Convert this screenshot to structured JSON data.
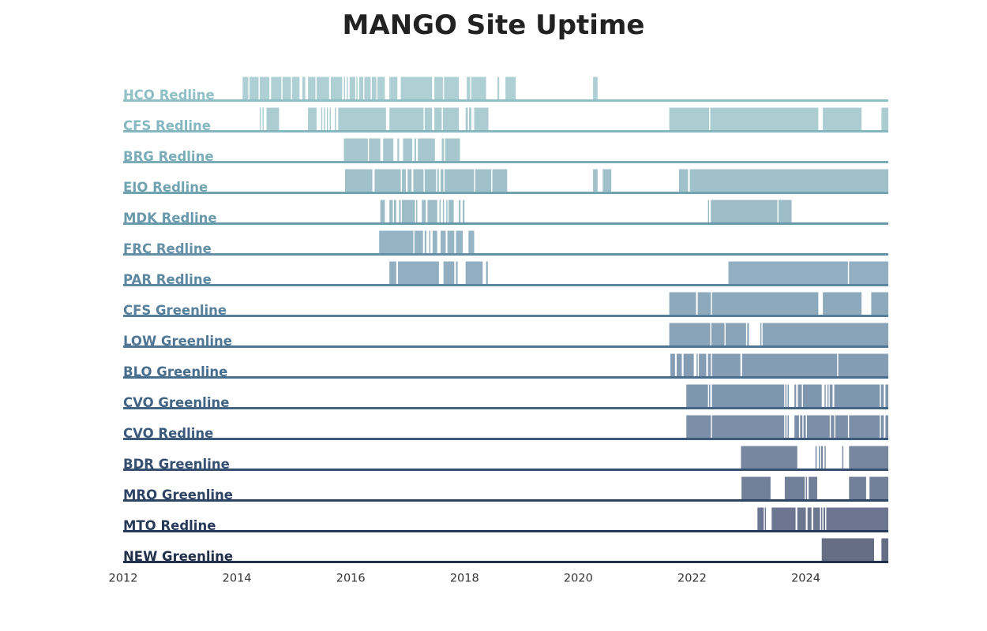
{
  "chart_data": {
    "type": "timeline",
    "title": "MANGO Site Uptime",
    "xlabel": "",
    "ylabel": "",
    "xlim": [
      2012,
      2025.45
    ],
    "x_ticks": [
      "2012",
      "2014",
      "2016",
      "2018",
      "2020",
      "2022",
      "2024"
    ],
    "grid": false,
    "series": [
      {
        "name": "HCO Redline",
        "color": "#8fc0c6",
        "bar_color": "#aed0d5",
        "intervals": [
          [
            2014.1,
            2014.2
          ],
          [
            2014.22,
            2014.38
          ],
          [
            2014.4,
            2014.57
          ],
          [
            2014.6,
            2014.78
          ],
          [
            2014.8,
            2014.95
          ],
          [
            2014.97,
            2015.1
          ],
          [
            2015.15,
            2015.2
          ],
          [
            2015.25,
            2015.38
          ],
          [
            2015.4,
            2015.62
          ],
          [
            2015.65,
            2015.85
          ],
          [
            2015.88,
            2015.9
          ],
          [
            2015.93,
            2015.95
          ],
          [
            2015.98,
            2016.08
          ],
          [
            2016.1,
            2016.12
          ],
          [
            2016.15,
            2016.22
          ],
          [
            2016.24,
            2016.35
          ],
          [
            2016.37,
            2016.45
          ],
          [
            2016.47,
            2016.6
          ],
          [
            2016.68,
            2016.82
          ],
          [
            2016.88,
            2017.43
          ],
          [
            2017.47,
            2017.62
          ],
          [
            2017.64,
            2017.9
          ],
          [
            2018.04,
            2018.1
          ],
          [
            2018.12,
            2018.38
          ],
          [
            2018.58,
            2018.61
          ],
          [
            2018.72,
            2018.9
          ],
          [
            2020.26,
            2020.34
          ]
        ]
      },
      {
        "name": "CFS Redline",
        "color": "#85b7c0",
        "bar_color": "#abcdd2",
        "intervals": [
          [
            2014.4,
            2014.42
          ],
          [
            2014.45,
            2014.47
          ],
          [
            2014.52,
            2014.74
          ],
          [
            2015.25,
            2015.4
          ],
          [
            2015.48,
            2015.5
          ],
          [
            2015.53,
            2015.55
          ],
          [
            2015.58,
            2015.6
          ],
          [
            2015.63,
            2015.65
          ],
          [
            2015.72,
            2015.74
          ],
          [
            2015.78,
            2016.62
          ],
          [
            2016.68,
            2017.28
          ],
          [
            2017.3,
            2017.43
          ],
          [
            2017.47,
            2017.6
          ],
          [
            2017.62,
            2017.9
          ],
          [
            2018.02,
            2018.06
          ],
          [
            2018.08,
            2018.12
          ],
          [
            2018.17,
            2018.42
          ],
          [
            2021.6,
            2022.3
          ],
          [
            2022.32,
            2024.22
          ],
          [
            2024.3,
            2024.98
          ],
          [
            2025.33,
            2025.45
          ]
        ]
      },
      {
        "name": "BRG Redline",
        "color": "#7aadb8",
        "bar_color": "#a6c7ce",
        "intervals": [
          [
            2015.88,
            2016.3
          ],
          [
            2016.32,
            2016.52
          ],
          [
            2016.57,
            2016.75
          ],
          [
            2016.82,
            2016.85
          ],
          [
            2016.92,
            2017.08
          ],
          [
            2017.12,
            2017.15
          ],
          [
            2017.18,
            2017.48
          ],
          [
            2017.6,
            2017.64
          ],
          [
            2017.66,
            2017.92
          ]
        ]
      },
      {
        "name": "EIO Redline",
        "color": "#71a3b1",
        "bar_color": "#a1c1ca",
        "intervals": [
          [
            2015.9,
            2016.38
          ],
          [
            2016.42,
            2016.88
          ],
          [
            2016.9,
            2016.97
          ],
          [
            2017.0,
            2017.07
          ],
          [
            2017.1,
            2017.28
          ],
          [
            2017.3,
            2017.5
          ],
          [
            2017.52,
            2017.55
          ],
          [
            2017.58,
            2017.63
          ],
          [
            2017.65,
            2018.17
          ],
          [
            2018.19,
            2018.47
          ],
          [
            2018.49,
            2018.75
          ],
          [
            2020.26,
            2020.34
          ],
          [
            2020.43,
            2020.58
          ],
          [
            2021.77,
            2021.93
          ],
          [
            2021.96,
            2025.45
          ]
        ]
      },
      {
        "name": "MDK Redline",
        "color": "#6999ab",
        "bar_color": "#9cbcc7",
        "intervals": [
          [
            2016.52,
            2016.6
          ],
          [
            2016.68,
            2016.74
          ],
          [
            2016.76,
            2016.8
          ],
          [
            2016.85,
            2016.88
          ],
          [
            2016.9,
            2017.13
          ],
          [
            2017.15,
            2017.17
          ],
          [
            2017.25,
            2017.32
          ],
          [
            2017.35,
            2017.52
          ],
          [
            2017.56,
            2017.58
          ],
          [
            2017.62,
            2017.64
          ],
          [
            2017.68,
            2017.7
          ],
          [
            2017.72,
            2017.81
          ],
          [
            2017.9,
            2017.93
          ],
          [
            2017.97,
            2018.0
          ],
          [
            2022.28,
            2022.3
          ],
          [
            2022.33,
            2023.5
          ],
          [
            2023.52,
            2023.75
          ]
        ]
      },
      {
        "name": "FRC Redline",
        "color": "#6390a6",
        "bar_color": "#96b5c4",
        "intervals": [
          [
            2016.5,
            2017.1
          ],
          [
            2017.12,
            2017.27
          ],
          [
            2017.3,
            2017.33
          ],
          [
            2017.38,
            2017.4
          ],
          [
            2017.44,
            2017.52
          ],
          [
            2017.58,
            2017.67
          ],
          [
            2017.7,
            2017.82
          ],
          [
            2017.85,
            2017.97
          ],
          [
            2018.07,
            2018.17
          ]
        ]
      },
      {
        "name": "PAR Redline",
        "color": "#5d88a1",
        "bar_color": "#91afc0",
        "intervals": [
          [
            2016.68,
            2016.8
          ],
          [
            2016.83,
            2017.55
          ],
          [
            2017.63,
            2017.82
          ],
          [
            2017.85,
            2017.88
          ],
          [
            2018.02,
            2018.32
          ],
          [
            2018.38,
            2018.41
          ],
          [
            2022.64,
            2024.74
          ],
          [
            2024.76,
            2025.45
          ]
        ]
      },
      {
        "name": "CFS Greenline",
        "color": "#56809b",
        "bar_color": "#8da9bc",
        "intervals": [
          [
            2021.6,
            2022.07
          ],
          [
            2022.1,
            2022.33
          ],
          [
            2022.35,
            2024.22
          ],
          [
            2024.3,
            2024.98
          ],
          [
            2025.15,
            2025.45
          ]
        ]
      },
      {
        "name": "LOW Greenline",
        "color": "#4f7795",
        "bar_color": "#89a3b8",
        "intervals": [
          [
            2021.6,
            2022.32
          ],
          [
            2022.34,
            2022.57
          ],
          [
            2022.59,
            2022.95
          ],
          [
            2022.97,
            2023.0
          ],
          [
            2023.2,
            2023.22
          ],
          [
            2023.24,
            2025.45
          ]
        ]
      },
      {
        "name": "BLO Greenline",
        "color": "#486e8e",
        "bar_color": "#849cb4",
        "intervals": [
          [
            2021.62,
            2021.7
          ],
          [
            2021.73,
            2021.82
          ],
          [
            2021.85,
            2022.03
          ],
          [
            2022.08,
            2022.1
          ],
          [
            2022.12,
            2022.25
          ],
          [
            2022.28,
            2022.33
          ],
          [
            2022.35,
            2022.85
          ],
          [
            2022.88,
            2024.55
          ],
          [
            2024.57,
            2025.45
          ]
        ]
      },
      {
        "name": "CVO Greenline",
        "color": "#426586",
        "bar_color": "#7e96ae",
        "intervals": [
          [
            2021.9,
            2022.28
          ],
          [
            2022.3,
            2022.32
          ],
          [
            2022.35,
            2023.62
          ],
          [
            2023.64,
            2023.66
          ],
          [
            2023.68,
            2023.7
          ],
          [
            2023.8,
            2023.83
          ],
          [
            2023.86,
            2023.93
          ],
          [
            2023.95,
            2024.28
          ],
          [
            2024.33,
            2024.35
          ],
          [
            2024.38,
            2024.4
          ],
          [
            2024.42,
            2024.47
          ],
          [
            2024.5,
            2025.3
          ],
          [
            2025.32,
            2025.37
          ],
          [
            2025.4,
            2025.45
          ]
        ]
      },
      {
        "name": "CVO Redline",
        "color": "#3b5a7c",
        "bar_color": "#7b8fa8",
        "intervals": [
          [
            2021.9,
            2022.33
          ],
          [
            2022.35,
            2023.62
          ],
          [
            2023.64,
            2023.66
          ],
          [
            2023.68,
            2023.7
          ],
          [
            2023.8,
            2023.88
          ],
          [
            2023.9,
            2023.94
          ],
          [
            2023.96,
            2024.0
          ],
          [
            2024.02,
            2024.42
          ],
          [
            2024.44,
            2024.5
          ],
          [
            2024.52,
            2024.74
          ],
          [
            2024.76,
            2025.3
          ],
          [
            2025.32,
            2025.37
          ],
          [
            2025.4,
            2025.45
          ]
        ]
      },
      {
        "name": "BDR Greenline",
        "color": "#344f70",
        "bar_color": "#77879f",
        "intervals": [
          [
            2022.86,
            2023.85
          ],
          [
            2024.17,
            2024.19
          ],
          [
            2024.23,
            2024.25
          ],
          [
            2024.27,
            2024.3
          ],
          [
            2024.33,
            2024.35
          ],
          [
            2024.64,
            2024.66
          ],
          [
            2024.76,
            2025.45
          ]
        ]
      },
      {
        "name": "MRO Greenline",
        "color": "#2e4465",
        "bar_color": "#727f98",
        "intervals": [
          [
            2022.87,
            2023.38
          ],
          [
            2023.63,
            2023.98
          ],
          [
            2024.0,
            2024.02
          ],
          [
            2024.05,
            2024.2
          ],
          [
            2024.76,
            2025.06
          ],
          [
            2025.12,
            2025.45
          ]
        ]
      },
      {
        "name": "MTO Redline",
        "color": "#283a59",
        "bar_color": "#6c7690",
        "intervals": [
          [
            2023.15,
            2023.26
          ],
          [
            2023.28,
            2023.3
          ],
          [
            2023.4,
            2023.82
          ],
          [
            2023.85,
            2024.0
          ],
          [
            2024.03,
            2024.1
          ],
          [
            2024.13,
            2024.25
          ],
          [
            2024.27,
            2024.29
          ],
          [
            2024.31,
            2024.34
          ],
          [
            2024.36,
            2025.45
          ]
        ]
      },
      {
        "name": "NEW Greenline",
        "color": "#22304c",
        "bar_color": "#666e86",
        "intervals": [
          [
            2024.28,
            2025.2
          ],
          [
            2025.33,
            2025.45
          ]
        ]
      }
    ]
  }
}
